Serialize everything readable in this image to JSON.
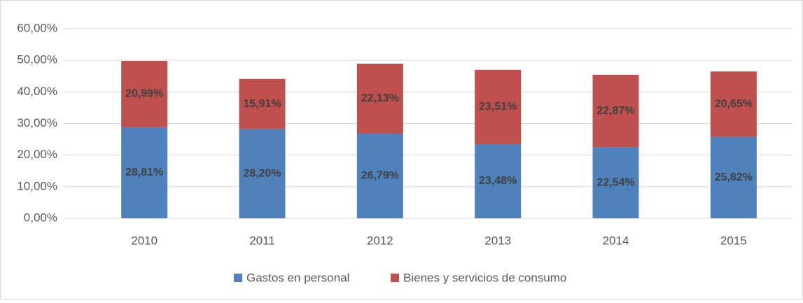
{
  "chart_data": {
    "type": "stacked_bar",
    "categories": [
      "2010",
      "2011",
      "2012",
      "2013",
      "2014",
      "2015"
    ],
    "series": [
      {
        "name": "Gastos en personal",
        "color": "#4f81bd",
        "values": [
          28.81,
          28.2,
          26.79,
          23.48,
          22.54,
          25.82
        ],
        "value_labels": [
          "28,81%",
          "28,20%",
          "26,79%",
          "23,48%",
          "22,54%",
          "25,82%"
        ]
      },
      {
        "name": "Bienes y servicios de consumo",
        "color": "#c0504d",
        "values": [
          20.99,
          15.91,
          22.13,
          23.51,
          22.87,
          20.65
        ],
        "value_labels": [
          "20,99%",
          "15,91%",
          "22,13%",
          "23,51%",
          "22,87%",
          "20,65%"
        ]
      }
    ],
    "ylim": [
      0,
      60
    ],
    "yticks": [
      {
        "value": 0,
        "label": "0,00%"
      },
      {
        "value": 10,
        "label": "10,00%"
      },
      {
        "value": 20,
        "label": "20,00%"
      },
      {
        "value": 30,
        "label": "30,00%"
      },
      {
        "value": 40,
        "label": "40,00%"
      },
      {
        "value": 50,
        "label": "50,00%"
      },
      {
        "value": 60,
        "label": "60,00%"
      }
    ],
    "grid": true,
    "legend": "bottom"
  }
}
